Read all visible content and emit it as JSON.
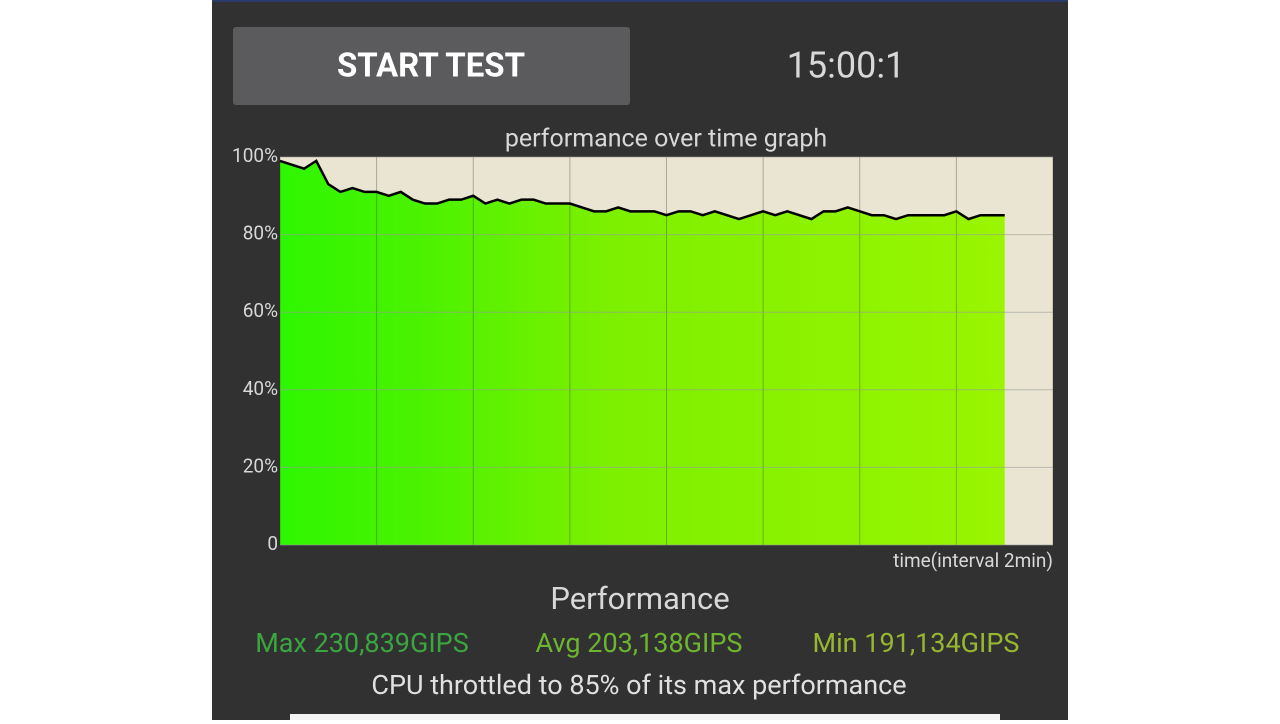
{
  "button": "START TEST",
  "timer": "15:00:1",
  "chart_data": {
    "type": "area",
    "title": "performance over time graph",
    "x_label": "time(interval 2min)",
    "x": [
      0,
      0.25,
      0.5,
      0.75,
      1,
      1.25,
      1.5,
      1.75,
      2,
      2.25,
      2.5,
      2.75,
      3,
      3.25,
      3.5,
      3.75,
      4,
      4.25,
      4.5,
      4.75,
      5,
      5.25,
      5.5,
      5.75,
      6,
      6.25,
      6.5,
      6.75,
      7,
      7.25,
      7.5,
      7.75,
      8,
      8.25,
      8.5,
      8.75,
      9,
      9.25,
      9.5,
      9.75,
      10,
      10.25,
      10.5,
      10.75,
      11,
      11.25,
      11.5,
      11.75,
      12,
      12.25,
      12.5,
      12.75,
      13,
      13.25,
      13.5,
      13.75,
      14,
      14.25,
      14.5,
      14.75,
      15
    ],
    "values": [
      99,
      98,
      97,
      99,
      93,
      91,
      92,
      91,
      91,
      90,
      91,
      89,
      88,
      88,
      89,
      89,
      90,
      88,
      89,
      88,
      89,
      89,
      88,
      88,
      88,
      87,
      86,
      86,
      87,
      86,
      86,
      86,
      85,
      86,
      86,
      85,
      86,
      85,
      84,
      85,
      86,
      85,
      86,
      85,
      84,
      86,
      86,
      87,
      86,
      85,
      85,
      84,
      85,
      85,
      85,
      85,
      86,
      84,
      85,
      85,
      85
    ],
    "line_color": "#000000",
    "xlim": [
      0,
      16
    ],
    "xticks": [
      0,
      2,
      4,
      6,
      8,
      10,
      12,
      14,
      16
    ],
    "ylim": [
      0,
      100
    ],
    "yticks": [
      0,
      {
        "value": 20,
        "label": "20%"
      },
      {
        "value": 40,
        "label": "40%"
      },
      {
        "value": 60,
        "label": "60%"
      },
      {
        "value": 80,
        "label": "80%"
      },
      {
        "value": 100,
        "label": "100%"
      }
    ],
    "grid": true
  },
  "summary": {
    "heading": "Performance",
    "stats": [
      {
        "text": "Max 230,839GIPS",
        "color": "#3aa640"
      },
      {
        "text": "Avg 203,138GIPS",
        "color": "#6db52e"
      },
      {
        "text": "Min 191,134GIPS",
        "color": "#98b730"
      }
    ],
    "note": "CPU throttled to 85% of its max performance"
  }
}
